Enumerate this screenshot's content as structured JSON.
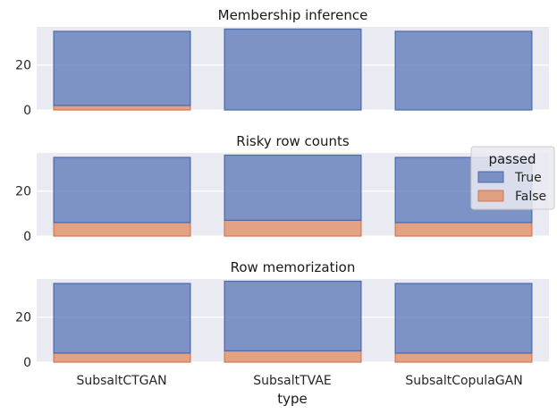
{
  "chart_data": {
    "type": "bar",
    "stacked": true,
    "xlabel": "type",
    "categories": [
      "SubsaltCTGAN",
      "SubsaltTVAE",
      "SubsaltCopulaGAN"
    ],
    "ylim": [
      0,
      37
    ],
    "yticks": [
      0,
      20
    ],
    "grid": true,
    "legend": {
      "title": "passed",
      "placement": "right",
      "entries": [
        "True",
        "False"
      ]
    },
    "colors": {
      "True": "#5975b5",
      "False": "#e08a5f"
    },
    "panels": [
      {
        "title": "Membership inference",
        "series": [
          {
            "name": "False",
            "values": [
              2,
              0,
              0
            ]
          },
          {
            "name": "True",
            "values": [
              33,
              36,
              35
            ]
          }
        ]
      },
      {
        "title": "Risky row counts",
        "series": [
          {
            "name": "False",
            "values": [
              6,
              7,
              6
            ]
          },
          {
            "name": "True",
            "values": [
              29,
              29,
              29
            ]
          }
        ]
      },
      {
        "title": "Row memorization",
        "series": [
          {
            "name": "False",
            "values": [
              4,
              5,
              4
            ]
          },
          {
            "name": "True",
            "values": [
              31,
              31,
              31
            ]
          }
        ]
      }
    ]
  }
}
